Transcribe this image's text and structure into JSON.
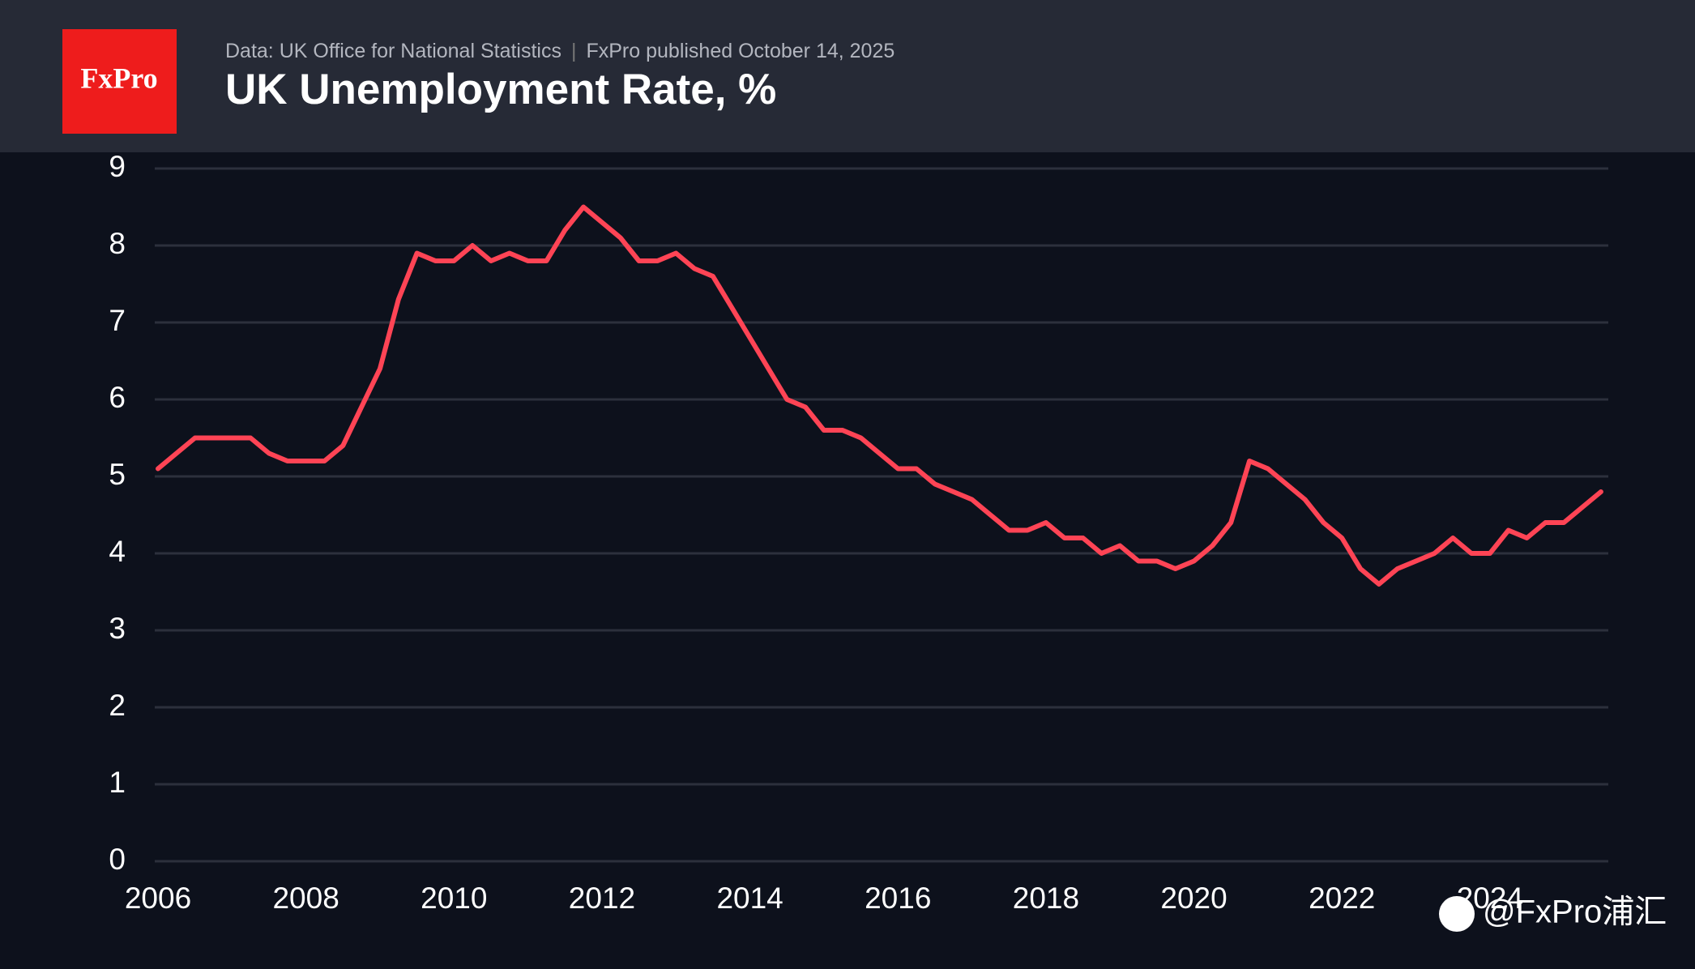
{
  "chart_data": {
    "type": "line",
    "logo": "FxPro",
    "source": "Data: UK Office for National Statistics",
    "published": "FxPro published October 14, 2025",
    "title": "UK Unemployment Rate, %",
    "watermark": "@FxPro浦汇",
    "x": [
      2006.0,
      2006.25,
      2006.5,
      2006.75,
      2007.0,
      2007.25,
      2007.5,
      2007.75,
      2008.0,
      2008.25,
      2008.5,
      2008.75,
      2009.0,
      2009.25,
      2009.5,
      2009.75,
      2010.0,
      2010.25,
      2010.5,
      2010.75,
      2011.0,
      2011.25,
      2011.5,
      2011.75,
      2012.0,
      2012.25,
      2012.5,
      2012.75,
      2013.0,
      2013.25,
      2013.5,
      2013.75,
      2014.0,
      2014.25,
      2014.5,
      2014.75,
      2015.0,
      2015.25,
      2015.5,
      2015.75,
      2016.0,
      2016.25,
      2016.5,
      2016.75,
      2017.0,
      2017.25,
      2017.5,
      2017.75,
      2018.0,
      2018.25,
      2018.5,
      2018.75,
      2019.0,
      2019.25,
      2019.5,
      2019.75,
      2020.0,
      2020.25,
      2020.5,
      2020.75,
      2021.0,
      2021.25,
      2021.5,
      2021.75,
      2022.0,
      2022.25,
      2022.5,
      2022.75,
      2023.0,
      2023.25,
      2023.5,
      2023.75,
      2024.0,
      2024.25,
      2024.5,
      2024.75,
      2025.0,
      2025.25,
      2025.5
    ],
    "series": [
      {
        "name": "UK Unemployment Rate",
        "color": "#ff4455",
        "values": [
          5.1,
          5.3,
          5.5,
          5.5,
          5.5,
          5.5,
          5.3,
          5.2,
          5.2,
          5.2,
          5.4,
          5.9,
          6.4,
          7.3,
          7.9,
          7.8,
          7.8,
          8.0,
          7.8,
          7.9,
          7.8,
          7.8,
          8.2,
          8.5,
          8.3,
          8.1,
          7.8,
          7.8,
          7.9,
          7.7,
          7.6,
          7.2,
          6.8,
          6.4,
          6.0,
          5.9,
          5.6,
          5.6,
          5.5,
          5.3,
          5.1,
          5.1,
          4.9,
          4.8,
          4.7,
          4.5,
          4.3,
          4.3,
          4.4,
          4.2,
          4.2,
          4.0,
          4.1,
          3.9,
          3.9,
          3.8,
          3.9,
          4.1,
          4.4,
          5.2,
          5.1,
          4.9,
          4.7,
          4.4,
          4.2,
          3.8,
          3.6,
          3.8,
          3.9,
          4.0,
          4.2,
          4.0,
          4.0,
          4.3,
          4.2,
          4.4,
          4.4,
          4.6,
          4.8
        ]
      }
    ],
    "xlim": [
      2006,
      2025.6
    ],
    "xticks": [
      2006,
      2008,
      2010,
      2012,
      2014,
      2016,
      2018,
      2020,
      2022,
      2024
    ],
    "ylim": [
      0,
      9
    ],
    "yticks": [
      0,
      1,
      2,
      3,
      4,
      5,
      6,
      7,
      8,
      9
    ],
    "grid": true
  }
}
